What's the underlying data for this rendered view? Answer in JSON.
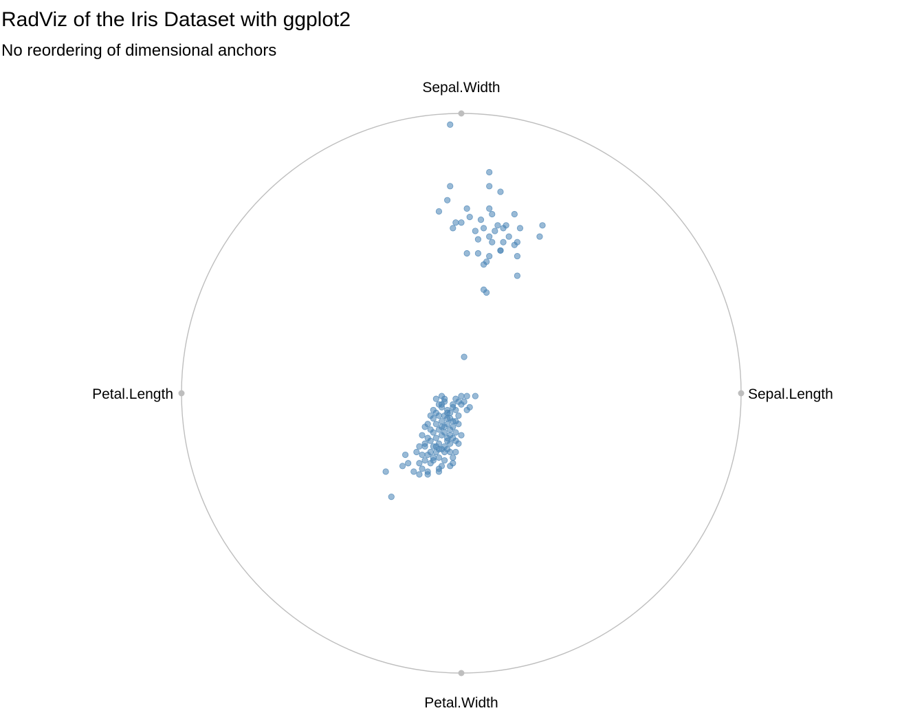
{
  "chart_data": {
    "type": "scatter",
    "title": "RadViz of the Iris Dataset with ggplot2",
    "subtitle": "No reordering of dimensional anchors",
    "anchors": [
      {
        "label": "Sepal.Length",
        "x": 1,
        "y": 0
      },
      {
        "label": "Sepal.Width",
        "x": 0,
        "y": 1
      },
      {
        "label": "Petal.Length",
        "x": -1,
        "y": 0
      },
      {
        "label": "Petal.Width",
        "x": 0,
        "y": -1
      }
    ],
    "point_color": "#4682B4",
    "circle_color": "#BEBEBE",
    "xlim": [
      -1,
      1
    ],
    "ylim": [
      -1,
      1
    ],
    "points": [
      [
        -0.04,
        0.96
      ],
      [
        0.1,
        0.79
      ],
      [
        -0.04,
        0.74
      ],
      [
        0.1,
        0.74
      ],
      [
        0.14,
        0.72
      ],
      [
        -0.05,
        0.69
      ],
      [
        -0.08,
        0.65
      ],
      [
        0.02,
        0.66
      ],
      [
        0.1,
        0.66
      ],
      [
        0.11,
        0.64
      ],
      [
        0.19,
        0.64
      ],
      [
        0.0,
        0.61
      ],
      [
        0.03,
        0.63
      ],
      [
        0.07,
        0.62
      ],
      [
        -0.02,
        0.61
      ],
      [
        0.16,
        0.6
      ],
      [
        0.15,
        0.59
      ],
      [
        0.13,
        0.6
      ],
      [
        0.21,
        0.59
      ],
      [
        0.29,
        0.6
      ],
      [
        -0.03,
        0.59
      ],
      [
        0.08,
        0.59
      ],
      [
        0.12,
        0.58
      ],
      [
        0.05,
        0.58
      ],
      [
        0.17,
        0.56
      ],
      [
        0.1,
        0.56
      ],
      [
        0.28,
        0.56
      ],
      [
        0.2,
        0.54
      ],
      [
        0.15,
        0.54
      ],
      [
        0.06,
        0.55
      ],
      [
        0.11,
        0.54
      ],
      [
        0.19,
        0.53
      ],
      [
        0.14,
        0.51
      ],
      [
        0.06,
        0.5
      ],
      [
        0.1,
        0.49
      ],
      [
        0.2,
        0.49
      ],
      [
        0.14,
        0.51
      ],
      [
        0.02,
        0.5
      ],
      [
        0.09,
        0.47
      ],
      [
        0.2,
        0.42
      ],
      [
        0.08,
        0.46
      ],
      [
        0.09,
        0.36
      ],
      [
        0.08,
        0.37
      ],
      [
        0.01,
        0.13
      ],
      [
        0.02,
        -0.01
      ],
      [
        0.05,
        -0.01
      ],
      [
        -0.09,
        -0.02
      ],
      [
        -0.06,
        -0.02
      ],
      [
        -0.01,
        -0.03
      ],
      [
        -0.03,
        -0.04
      ],
      [
        0.0,
        -0.04
      ],
      [
        0.03,
        -0.05
      ],
      [
        -0.08,
        -0.04
      ],
      [
        -0.03,
        -0.05
      ],
      [
        0.02,
        -0.06
      ],
      [
        -0.07,
        -0.05
      ],
      [
        -0.05,
        -0.06
      ],
      [
        -0.02,
        -0.06
      ],
      [
        -0.04,
        -0.07
      ],
      [
        -0.01,
        -0.08
      ],
      [
        -0.06,
        -0.08
      ],
      [
        -0.08,
        -0.08
      ],
      [
        -0.11,
        -0.08
      ],
      [
        -0.04,
        -0.09
      ],
      [
        -0.1,
        -0.09
      ],
      [
        -0.02,
        -0.1
      ],
      [
        -0.07,
        -0.1
      ],
      [
        -0.05,
        -0.11
      ],
      [
        -0.01,
        -0.11
      ],
      [
        -0.09,
        -0.11
      ],
      [
        -0.12,
        -0.11
      ],
      [
        -0.03,
        -0.12
      ],
      [
        -0.06,
        -0.12
      ],
      [
        -0.04,
        -0.13
      ],
      [
        -0.08,
        -0.13
      ],
      [
        -0.1,
        -0.14
      ],
      [
        -0.02,
        -0.14
      ],
      [
        -0.06,
        -0.14
      ],
      [
        0.0,
        -0.15
      ],
      [
        -0.07,
        -0.15
      ],
      [
        -0.09,
        -0.16
      ],
      [
        -0.12,
        -0.16
      ],
      [
        -0.03,
        -0.16
      ],
      [
        -0.05,
        -0.17
      ],
      [
        -0.11,
        -0.17
      ],
      [
        -0.02,
        -0.17
      ],
      [
        -0.08,
        -0.18
      ],
      [
        -0.04,
        -0.18
      ],
      [
        -0.06,
        -0.19
      ],
      [
        -0.1,
        -0.19
      ],
      [
        -0.13,
        -0.19
      ],
      [
        -0.05,
        -0.2
      ],
      [
        -0.07,
        -0.2
      ],
      [
        -0.02,
        -0.21
      ],
      [
        -0.09,
        -0.21
      ],
      [
        -0.04,
        -0.21
      ],
      [
        -0.12,
        -0.22
      ],
      [
        -0.14,
        -0.22
      ],
      [
        -0.08,
        -0.23
      ],
      [
        -0.03,
        -0.23
      ],
      [
        -0.1,
        -0.23
      ],
      [
        -0.06,
        -0.24
      ],
      [
        -0.13,
        -0.24
      ],
      [
        -0.08,
        -0.2
      ],
      [
        -0.15,
        -0.19
      ],
      [
        -0.1,
        -0.24
      ],
      [
        -0.06,
        -0.21
      ],
      [
        -0.04,
        -0.26
      ],
      [
        -0.11,
        -0.25
      ],
      [
        -0.15,
        -0.25
      ],
      [
        -0.19,
        -0.25
      ],
      [
        -0.07,
        -0.26
      ],
      [
        -0.17,
        -0.28
      ],
      [
        -0.12,
        -0.29
      ],
      [
        -0.15,
        -0.29
      ],
      [
        -0.12,
        -0.28
      ],
      [
        -0.08,
        -0.28
      ],
      [
        -0.03,
        -0.25
      ],
      [
        -0.14,
        -0.27
      ],
      [
        -0.21,
        -0.26
      ],
      [
        -0.04,
        -0.15
      ],
      [
        -0.01,
        -0.18
      ],
      [
        -0.05,
        -0.09
      ],
      [
        -0.09,
        -0.07
      ],
      [
        -0.06,
        -0.03
      ],
      [
        0.0,
        -0.01
      ],
      [
        -0.07,
        -0.12
      ],
      [
        -0.11,
        -0.13
      ],
      [
        -0.03,
        -0.1
      ],
      [
        -0.16,
        -0.21
      ],
      [
        -0.13,
        -0.18
      ],
      [
        -0.14,
        -0.15
      ],
      [
        -0.09,
        -0.19
      ],
      [
        -0.05,
        -0.07
      ],
      [
        0.01,
        -0.03
      ],
      [
        -0.07,
        -0.01
      ],
      [
        -0.02,
        -0.02
      ],
      [
        -0.1,
        -0.06
      ],
      [
        -0.07,
        -0.04
      ],
      [
        -0.13,
        -0.12
      ],
      [
        -0.05,
        -0.16
      ],
      [
        -0.08,
        -0.27
      ],
      [
        -0.11,
        -0.21
      ],
      [
        -0.27,
        -0.28
      ],
      [
        -0.25,
        -0.37
      ],
      [
        -0.2,
        -0.22
      ]
    ]
  }
}
